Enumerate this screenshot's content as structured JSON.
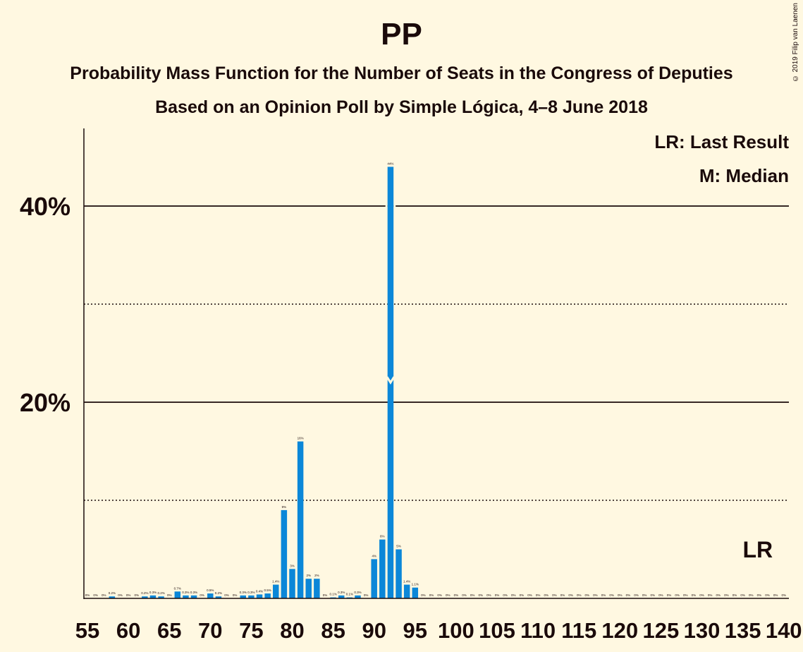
{
  "title": "PP",
  "subtitle": "Probability Mass Function for the Number of Seats in the Congress of Deputies",
  "subtitle2": "Based on an Opinion Poll by Simple Lógica, 4–8 June 2018",
  "copyright": "© 2019 Filip van Laenen",
  "legend": {
    "last_result": "LR: Last Result",
    "median": "M: Median"
  },
  "colors": {
    "background": "#fff8e1",
    "bar": "#0b87d8",
    "text": "#1a0a0a"
  },
  "chart_data": {
    "type": "bar",
    "xlim": [
      55,
      140
    ],
    "ylim": [
      0,
      48
    ],
    "x_ticks": [
      55,
      60,
      65,
      70,
      75,
      80,
      85,
      90,
      95,
      100,
      105,
      110,
      115,
      120,
      125,
      130,
      135,
      140
    ],
    "y_ticks": [
      {
        "value": 20,
        "label": "20%"
      },
      {
        "value": 40,
        "label": "40%"
      }
    ],
    "grid_dotted": [
      10,
      30
    ],
    "grid_solid": [
      20,
      40
    ],
    "median": 92,
    "median_label": "M",
    "last_result": 137,
    "last_result_label": "LR",
    "bars": [
      {
        "x": 55,
        "value": 0,
        "label": "0%"
      },
      {
        "x": 56,
        "value": 0,
        "label": "0%"
      },
      {
        "x": 57,
        "value": 0,
        "label": "0%"
      },
      {
        "x": 58,
        "value": 0.2,
        "label": "0.2%"
      },
      {
        "x": 59,
        "value": 0,
        "label": "0%"
      },
      {
        "x": 60,
        "value": 0,
        "label": "0%"
      },
      {
        "x": 61,
        "value": 0,
        "label": "0%"
      },
      {
        "x": 62,
        "value": 0.2,
        "label": "0.2%"
      },
      {
        "x": 63,
        "value": 0.3,
        "label": "0.3%"
      },
      {
        "x": 64,
        "value": 0.2,
        "label": "0.2%"
      },
      {
        "x": 65,
        "value": 0,
        "label": "0%"
      },
      {
        "x": 66,
        "value": 0.7,
        "label": "0.7%"
      },
      {
        "x": 67,
        "value": 0.3,
        "label": "0.3%"
      },
      {
        "x": 68,
        "value": 0.3,
        "label": "0.3%"
      },
      {
        "x": 69,
        "value": 0,
        "label": "0%"
      },
      {
        "x": 70,
        "value": 0.5,
        "label": "0.5%"
      },
      {
        "x": 71,
        "value": 0.2,
        "label": "0.2%"
      },
      {
        "x": 72,
        "value": 0,
        "label": "0%"
      },
      {
        "x": 73,
        "value": 0,
        "label": "0%"
      },
      {
        "x": 74,
        "value": 0.3,
        "label": "0.3%"
      },
      {
        "x": 75,
        "value": 0.3,
        "label": "0.3%"
      },
      {
        "x": 76,
        "value": 0.4,
        "label": "0.4%"
      },
      {
        "x": 77,
        "value": 0.5,
        "label": "0.5%"
      },
      {
        "x": 78,
        "value": 1.4,
        "label": "1.4%"
      },
      {
        "x": 79,
        "value": 9,
        "label": "9%"
      },
      {
        "x": 80,
        "value": 3,
        "label": "3%"
      },
      {
        "x": 81,
        "value": 16,
        "label": "16%"
      },
      {
        "x": 82,
        "value": 2,
        "label": "2%"
      },
      {
        "x": 83,
        "value": 2,
        "label": "2%"
      },
      {
        "x": 84,
        "value": 0,
        "label": "0%"
      },
      {
        "x": 85,
        "value": 0.1,
        "label": "0.1%"
      },
      {
        "x": 86,
        "value": 0.3,
        "label": "0.3%"
      },
      {
        "x": 87,
        "value": 0.1,
        "label": "0.1%"
      },
      {
        "x": 88,
        "value": 0.3,
        "label": "0.3%"
      },
      {
        "x": 89,
        "value": 0,
        "label": "0%"
      },
      {
        "x": 90,
        "value": 4,
        "label": "4%"
      },
      {
        "x": 91,
        "value": 6,
        "label": "6%"
      },
      {
        "x": 92,
        "value": 44,
        "label": "44%"
      },
      {
        "x": 93,
        "value": 5,
        "label": "5%"
      },
      {
        "x": 94,
        "value": 1.4,
        "label": "1.4%"
      },
      {
        "x": 95,
        "value": 1.1,
        "label": "1.1%"
      },
      {
        "x": 96,
        "value": 0,
        "label": "0%"
      },
      {
        "x": 97,
        "value": 0,
        "label": "0%"
      },
      {
        "x": 98,
        "value": 0,
        "label": "0%"
      },
      {
        "x": 99,
        "value": 0,
        "label": "0%"
      },
      {
        "x": 100,
        "value": 0,
        "label": "0%"
      },
      {
        "x": 101,
        "value": 0,
        "label": "0%"
      },
      {
        "x": 102,
        "value": 0,
        "label": "0%"
      },
      {
        "x": 103,
        "value": 0,
        "label": "0%"
      },
      {
        "x": 104,
        "value": 0,
        "label": "0%"
      },
      {
        "x": 105,
        "value": 0,
        "label": "0%"
      },
      {
        "x": 106,
        "value": 0,
        "label": "0%"
      },
      {
        "x": 107,
        "value": 0,
        "label": "0%"
      },
      {
        "x": 108,
        "value": 0,
        "label": "0%"
      },
      {
        "x": 109,
        "value": 0,
        "label": "0%"
      },
      {
        "x": 110,
        "value": 0,
        "label": "0%"
      },
      {
        "x": 111,
        "value": 0,
        "label": "0%"
      },
      {
        "x": 112,
        "value": 0,
        "label": "0%"
      },
      {
        "x": 113,
        "value": 0,
        "label": "0%"
      },
      {
        "x": 114,
        "value": 0,
        "label": "0%"
      },
      {
        "x": 115,
        "value": 0,
        "label": "0%"
      },
      {
        "x": 116,
        "value": 0,
        "label": "0%"
      },
      {
        "x": 117,
        "value": 0,
        "label": "0%"
      },
      {
        "x": 118,
        "value": 0,
        "label": "0%"
      },
      {
        "x": 119,
        "value": 0,
        "label": "0%"
      },
      {
        "x": 120,
        "value": 0,
        "label": "0%"
      },
      {
        "x": 121,
        "value": 0,
        "label": "0%"
      },
      {
        "x": 122,
        "value": 0,
        "label": "0%"
      },
      {
        "x": 123,
        "value": 0,
        "label": "0%"
      },
      {
        "x": 124,
        "value": 0,
        "label": "0%"
      },
      {
        "x": 125,
        "value": 0,
        "label": "0%"
      },
      {
        "x": 126,
        "value": 0,
        "label": "0%"
      },
      {
        "x": 127,
        "value": 0,
        "label": "0%"
      },
      {
        "x": 128,
        "value": 0,
        "label": "0%"
      },
      {
        "x": 129,
        "value": 0,
        "label": "0%"
      },
      {
        "x": 130,
        "value": 0,
        "label": "0%"
      },
      {
        "x": 131,
        "value": 0,
        "label": "0%"
      },
      {
        "x": 132,
        "value": 0,
        "label": "0%"
      },
      {
        "x": 133,
        "value": 0,
        "label": "0%"
      },
      {
        "x": 134,
        "value": 0,
        "label": "0%"
      },
      {
        "x": 135,
        "value": 0,
        "label": "0%"
      },
      {
        "x": 136,
        "value": 0,
        "label": "0%"
      },
      {
        "x": 137,
        "value": 0,
        "label": "0%"
      },
      {
        "x": 138,
        "value": 0,
        "label": "0%"
      },
      {
        "x": 139,
        "value": 0,
        "label": "0%"
      },
      {
        "x": 140,
        "value": 0,
        "label": "0%"
      }
    ]
  }
}
